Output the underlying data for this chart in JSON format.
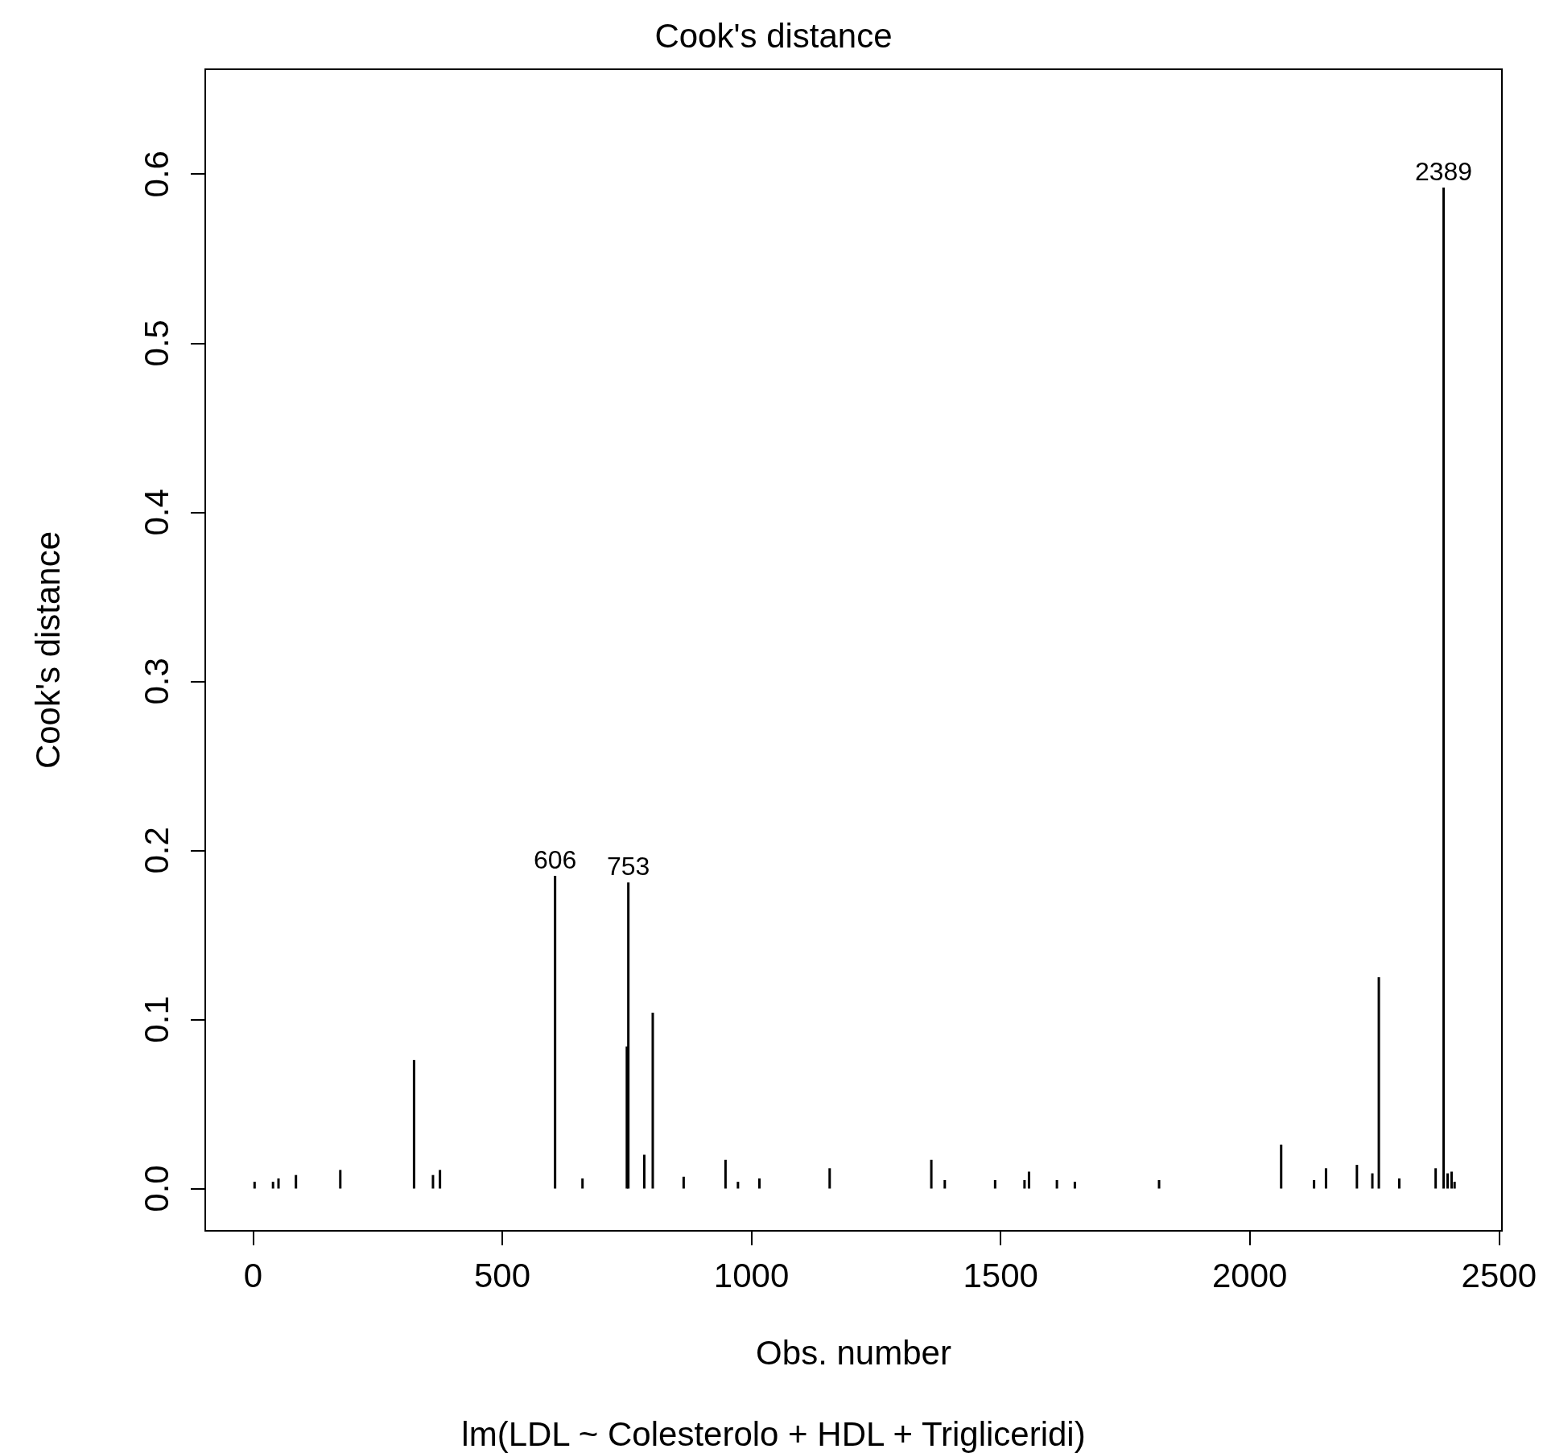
{
  "chart_data": {
    "type": "bar",
    "title": "Cook's distance",
    "xlabel": "Obs. number",
    "ylabel": "Cook's distance",
    "annotations": [
      {
        "text": "606",
        "x": 606,
        "y": 0.185
      },
      {
        "text": "753",
        "x": 753,
        "y": 0.181
      },
      {
        "text": "2389",
        "x": 2389,
        "y": 0.592
      },
      "lm(LDL ~ Colesterolo + HDL + Trigliceridi)"
    ],
    "x": [
      3,
      40,
      51,
      86,
      175,
      323,
      361,
      375,
      606,
      661,
      750,
      753,
      785,
      802,
      864,
      948,
      973,
      1016,
      1157,
      1361,
      1388,
      1489,
      1548,
      1557,
      1613,
      1649,
      1818,
      2063,
      2129,
      2153,
      2215,
      2246,
      2259,
      2300,
      2373,
      2389,
      2397,
      2405,
      2411
    ],
    "series": [
      {
        "color": "#000000",
        "values": [
          0.004,
          0.004,
          0.006,
          0.008,
          0.011,
          0.076,
          0.008,
          0.011,
          0.185,
          0.006,
          0.084,
          0.181,
          0.02,
          0.104,
          0.007,
          0.017,
          0.004,
          0.006,
          0.012,
          0.017,
          0.005,
          0.005,
          0.005,
          0.01,
          0.005,
          0.004,
          0.005,
          0.026,
          0.005,
          0.012,
          0.014,
          0.009,
          0.125,
          0.006,
          0.012,
          0.592,
          0.009,
          0.01,
          0.004
        ]
      }
    ],
    "xlim": [
      -96,
      2506
    ],
    "ylim": [
      -0.025,
      0.662
    ],
    "xticks": [
      0,
      500,
      1000,
      1500,
      2000,
      2500
    ],
    "yticks": [
      {
        "value": 0,
        "label": "0.0"
      },
      0.1,
      0.2,
      0.3,
      0.4,
      0.5,
      0.6
    ],
    "grid": false
  }
}
